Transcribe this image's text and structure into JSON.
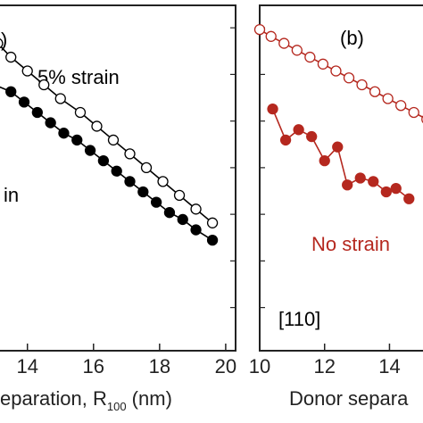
{
  "colors": {
    "black": "#000000",
    "red": "#b5281f",
    "frame": "#222222"
  },
  "chart_data": [
    {
      "type": "scatter",
      "panel_label": "",
      "xlabel": "eparation, R",
      "xlabel_subscript": "100",
      "xlabel_unit": " (nm)",
      "xlim": [
        12.9,
        20.3
      ],
      "xticks": [
        14,
        16,
        18,
        20
      ],
      "xtick_labels": [
        "14",
        "16",
        "18",
        "20"
      ],
      "grid": false,
      "series": [
        {
          "name": "5% strain",
          "marker": "open-circle",
          "color": "#000000",
          "x": [
            13.1,
            13.5,
            14.0,
            14.5,
            15.0,
            15.6,
            16.1,
            16.6,
            17.1,
            17.6,
            18.1,
            18.6,
            19.1,
            19.6
          ],
          "y": [
            0.89,
            0.85,
            0.81,
            0.77,
            0.73,
            0.69,
            0.65,
            0.61,
            0.57,
            0.53,
            0.49,
            0.45,
            0.41,
            0.37
          ]
        },
        {
          "name": "in",
          "marker": "filled-circle",
          "color": "#000000",
          "x": [
            13.0,
            13.5,
            13.9,
            14.3,
            14.7,
            15.1,
            15.5,
            15.9,
            16.3,
            16.7,
            17.1,
            17.5,
            17.9,
            18.3,
            18.7,
            19.1,
            19.6
          ],
          "y": [
            0.77,
            0.75,
            0.72,
            0.69,
            0.66,
            0.63,
            0.61,
            0.58,
            0.55,
            0.52,
            0.49,
            0.46,
            0.43,
            0.4,
            0.38,
            0.35,
            0.32
          ]
        }
      ],
      "annotations": [
        {
          "text": "5% strain",
          "color": "#000000"
        },
        {
          "text": "in",
          "color": "#000000"
        },
        {
          "text": ")",
          "color": "#000000"
        }
      ]
    },
    {
      "type": "scatter",
      "panel_label": "(b)",
      "direction_label": "[110]",
      "xlabel": "Donor separa",
      "xlim": [
        10,
        15.5
      ],
      "xticks": [
        10,
        12,
        14
      ],
      "xtick_labels": [
        "10",
        "12",
        "14"
      ],
      "grid": false,
      "series": [
        {
          "name": "",
          "marker": "open-circle",
          "color": "#b5281f",
          "x": [
            10.0,
            10.35,
            10.75,
            11.15,
            11.55,
            11.95,
            12.35,
            12.75,
            13.15,
            13.55,
            13.95,
            14.35,
            14.75,
            15.15
          ],
          "y": [
            0.93,
            0.91,
            0.89,
            0.87,
            0.85,
            0.83,
            0.81,
            0.79,
            0.77,
            0.75,
            0.73,
            0.71,
            0.69,
            0.67
          ]
        },
        {
          "name": "No strain",
          "marker": "filled-circle",
          "color": "#b5281f",
          "x": [
            10.4,
            10.8,
            11.2,
            11.6,
            12.0,
            12.4,
            12.7,
            13.1,
            13.5,
            13.9,
            14.2,
            14.6
          ],
          "y": [
            0.7,
            0.61,
            0.64,
            0.62,
            0.55,
            0.59,
            0.48,
            0.5,
            0.49,
            0.46,
            0.47,
            0.44
          ]
        }
      ],
      "annotations": [
        {
          "text": "No strain",
          "color": "#b5281f"
        }
      ]
    }
  ]
}
